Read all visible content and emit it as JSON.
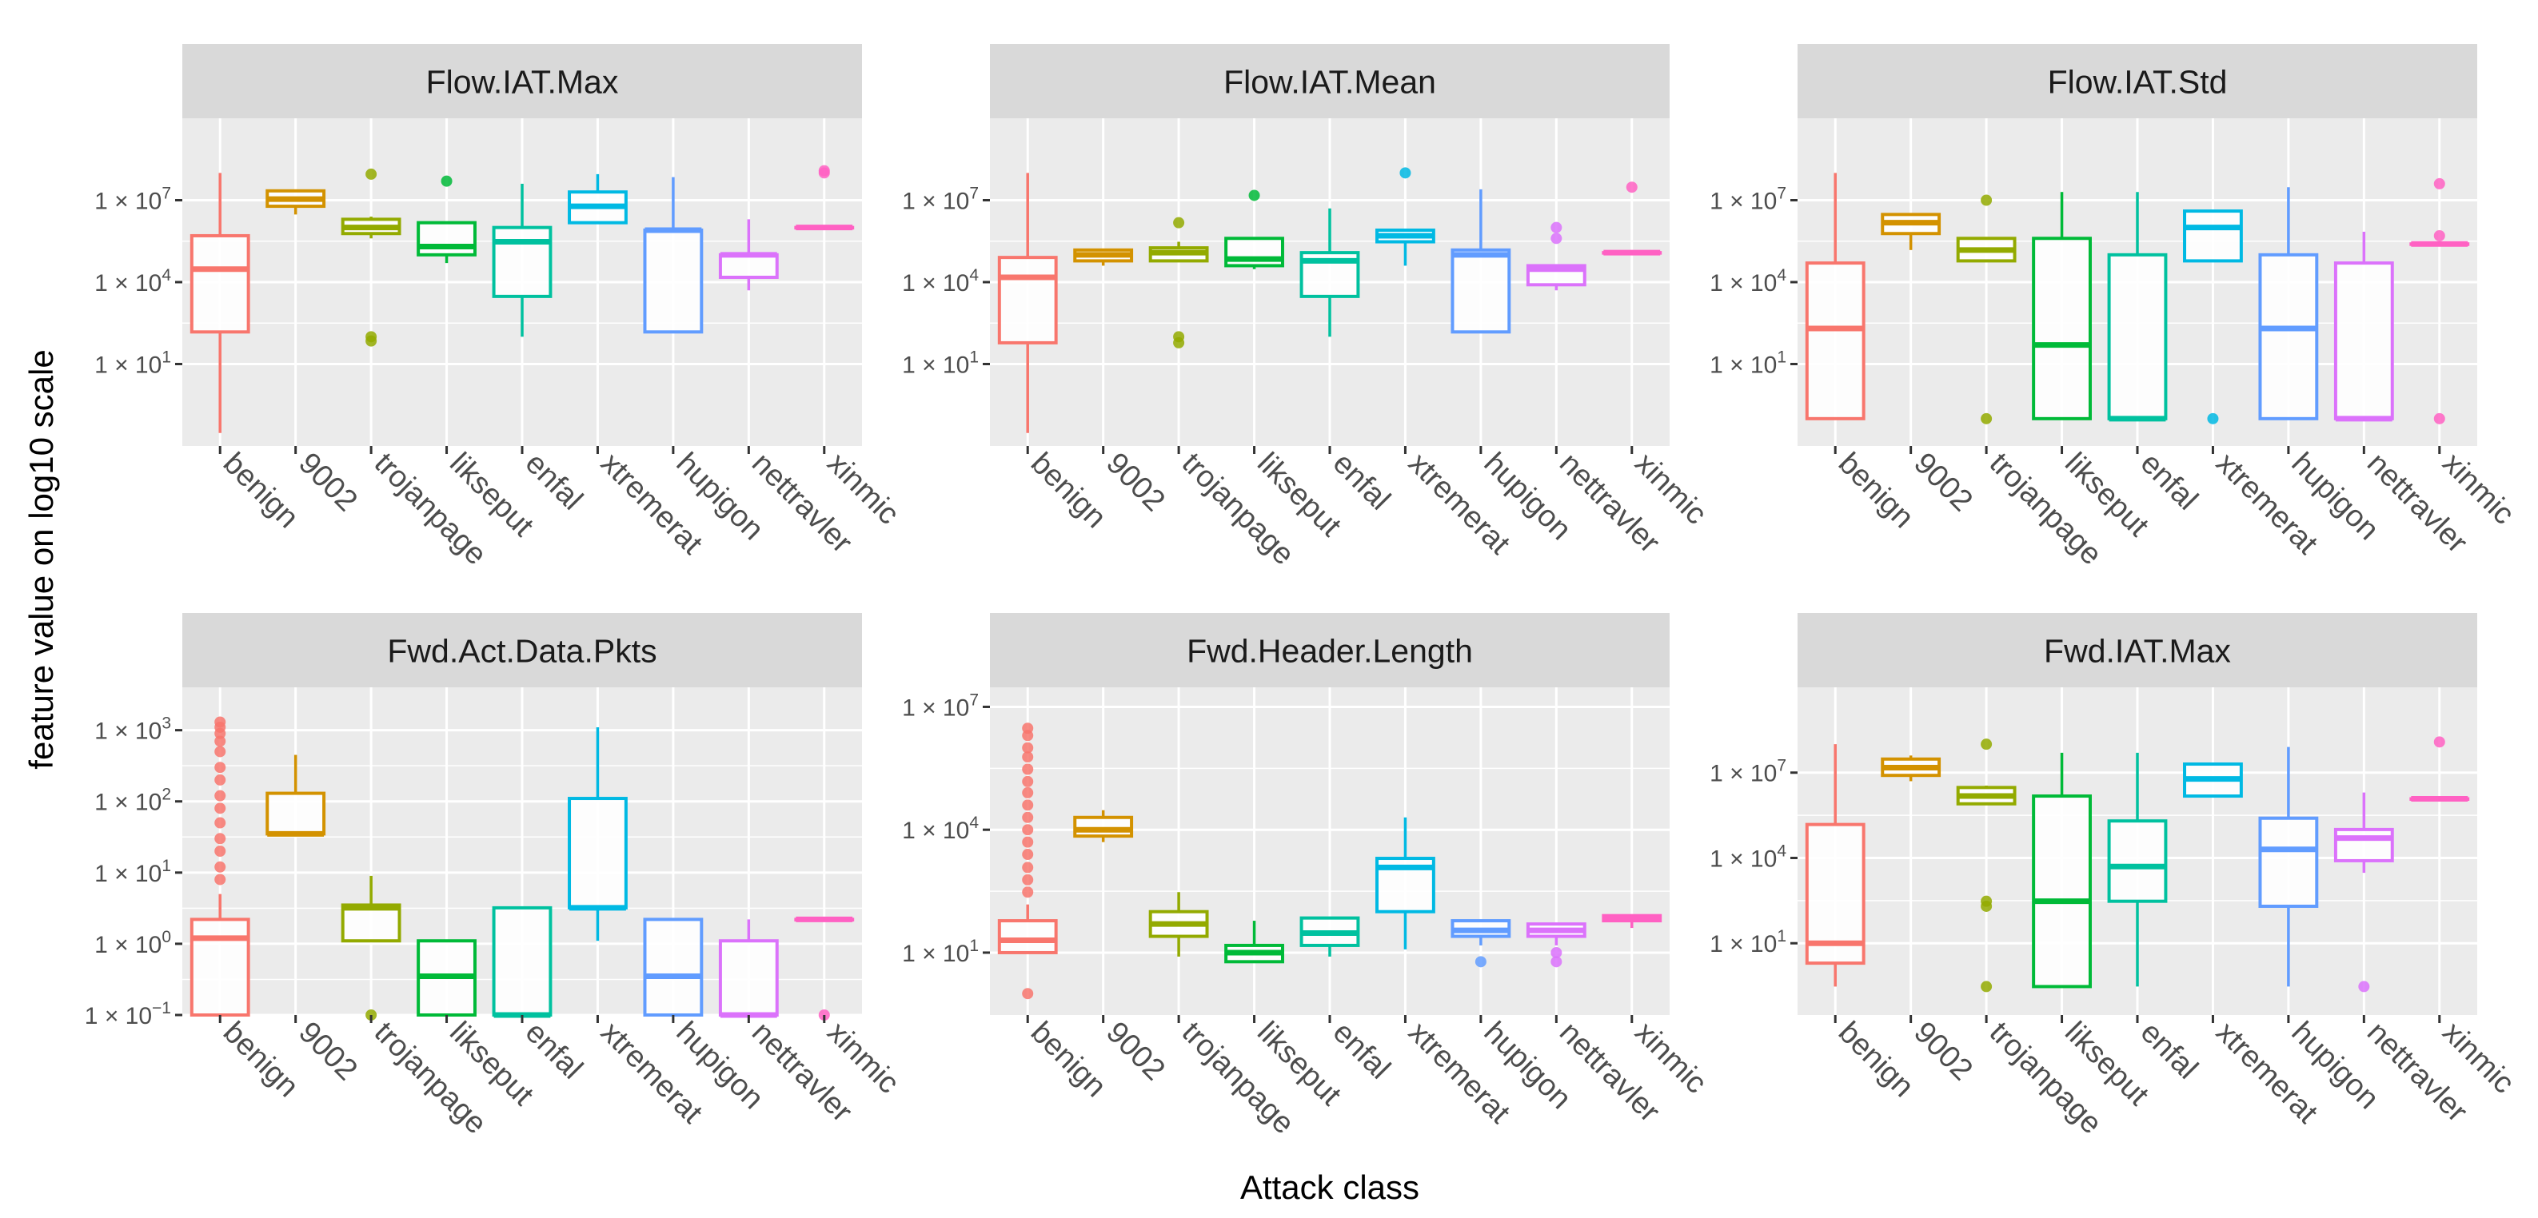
{
  "figure": {
    "xlabel": "Attack class",
    "ylabel": "feature value on log10 scale"
  },
  "chart_data": [
    {
      "type": "boxplot",
      "title": "Flow.IAT.Max",
      "yscale": "log10",
      "ylim": [
        0.01,
        10000000000
      ],
      "y_ticks": [
        {
          "value": 10,
          "label": "1 × 10",
          "exp": "1"
        },
        {
          "value": 10000,
          "label": "1 × 10",
          "exp": "4"
        },
        {
          "value": 10000000,
          "label": "1 × 10",
          "exp": "7"
        }
      ],
      "categories": [
        "benign",
        "9002",
        "trojanpage",
        "likseput",
        "enfal",
        "xtremerat",
        "hupigon",
        "nettravler",
        "xinmic"
      ],
      "boxes": [
        {
          "name": "benign",
          "color": "#F8766D",
          "whisker_low": 0.03,
          "q1": 150,
          "median": 30000,
          "q3": 500000,
          "whisker_high": 100000000,
          "outliers": []
        },
        {
          "name": "9002",
          "color": "#D39200",
          "whisker_low": 3000000,
          "q1": 6000000,
          "median": 11000000,
          "q3": 22000000,
          "whisker_high": 22000000,
          "outliers": []
        },
        {
          "name": "trojanpage",
          "color": "#93AA00",
          "whisker_low": 400000,
          "q1": 600000,
          "median": 1000000,
          "q3": 2000000,
          "whisker_high": 2500000,
          "outliers": [
            90000000,
            70,
            100
          ]
        },
        {
          "name": "likseput",
          "color": "#00BA38",
          "whisker_low": 50000,
          "q1": 100000,
          "median": 200000,
          "q3": 1500000,
          "whisker_high": 1500000,
          "outliers": [
            50000000
          ]
        },
        {
          "name": "enfal",
          "color": "#00C19F",
          "whisker_low": 100,
          "q1": 3000,
          "median": 300000,
          "q3": 1000000,
          "whisker_high": 40000000,
          "outliers": []
        },
        {
          "name": "xtremerat",
          "color": "#00B9E3",
          "whisker_low": 1500000,
          "q1": 1500000,
          "median": 6000000,
          "q3": 20000000,
          "whisker_high": 90000000,
          "outliers": []
        },
        {
          "name": "hupigon",
          "color": "#619CFF",
          "whisker_low": 150,
          "q1": 150,
          "median": 800000,
          "q3": 800000,
          "whisker_high": 70000000,
          "outliers": []
        },
        {
          "name": "nettravler",
          "color": "#DB72FB",
          "whisker_low": 5000,
          "q1": 15000,
          "median": 100000,
          "q3": 100000,
          "whisker_high": 2000000,
          "outliers": []
        },
        {
          "name": "xinmic",
          "color": "#FF61C3",
          "whisker_low": 1000000,
          "q1": 1000000,
          "median": 1000000,
          "q3": 1000000,
          "whisker_high": 1000000,
          "outliers": [
            100000000,
            120000000
          ]
        }
      ]
    },
    {
      "type": "boxplot",
      "title": "Flow.IAT.Mean",
      "yscale": "log10",
      "ylim": [
        0.01,
        10000000000
      ],
      "y_ticks": [
        {
          "value": 10,
          "label": "1 × 10",
          "exp": "1"
        },
        {
          "value": 10000,
          "label": "1 × 10",
          "exp": "4"
        },
        {
          "value": 10000000,
          "label": "1 × 10",
          "exp": "7"
        }
      ],
      "categories": [
        "benign",
        "9002",
        "trojanpage",
        "likseput",
        "enfal",
        "xtremerat",
        "hupigon",
        "nettravler",
        "xinmic"
      ],
      "boxes": [
        {
          "name": "benign",
          "color": "#F8766D",
          "whisker_low": 0.03,
          "q1": 60,
          "median": 15000,
          "q3": 80000,
          "whisker_high": 100000000,
          "outliers": []
        },
        {
          "name": "9002",
          "color": "#D39200",
          "whisker_low": 40000,
          "q1": 60000,
          "median": 100000,
          "q3": 150000,
          "whisker_high": 150000,
          "outliers": []
        },
        {
          "name": "trojanpage",
          "color": "#93AA00",
          "whisker_low": 60000,
          "q1": 60000,
          "median": 120000,
          "q3": 180000,
          "whisker_high": 300000,
          "outliers": [
            1500000,
            60,
            100
          ]
        },
        {
          "name": "likseput",
          "color": "#00BA38",
          "whisker_low": 30000,
          "q1": 40000,
          "median": 70000,
          "q3": 400000,
          "whisker_high": 400000,
          "outliers": [
            15000000
          ]
        },
        {
          "name": "enfal",
          "color": "#00C19F",
          "whisker_low": 100,
          "q1": 3000,
          "median": 60000,
          "q3": 120000,
          "whisker_high": 5000000,
          "outliers": []
        },
        {
          "name": "xtremerat",
          "color": "#00B9E3",
          "whisker_low": 40000,
          "q1": 300000,
          "median": 500000,
          "q3": 800000,
          "whisker_high": 800000,
          "outliers": [
            100000000
          ]
        },
        {
          "name": "hupigon",
          "color": "#619CFF",
          "whisker_low": 150,
          "q1": 150,
          "median": 100000,
          "q3": 150000,
          "whisker_high": 25000000,
          "outliers": []
        },
        {
          "name": "nettravler",
          "color": "#DB72FB",
          "whisker_low": 5000,
          "q1": 8000,
          "median": 30000,
          "q3": 40000,
          "whisker_high": 40000,
          "outliers": [
            400000,
            1000000
          ]
        },
        {
          "name": "xinmic",
          "color": "#FF61C3",
          "whisker_low": 120000,
          "q1": 120000,
          "median": 120000,
          "q3": 120000,
          "whisker_high": 120000,
          "outliers": [
            30000000
          ]
        }
      ]
    },
    {
      "type": "boxplot",
      "title": "Flow.IAT.Std",
      "yscale": "log10",
      "ylim": [
        0.01,
        10000000000
      ],
      "y_ticks": [
        {
          "value": 10,
          "label": "1 × 10",
          "exp": "1"
        },
        {
          "value": 10000,
          "label": "1 × 10",
          "exp": "4"
        },
        {
          "value": 10000000,
          "label": "1 × 10",
          "exp": "7"
        }
      ],
      "categories": [
        "benign",
        "9002",
        "trojanpage",
        "likseput",
        "enfal",
        "xtremerat",
        "hupigon",
        "nettravler",
        "xinmic"
      ],
      "boxes": [
        {
          "name": "benign",
          "color": "#F8766D",
          "whisker_low": 0.1,
          "q1": 0.1,
          "median": 200,
          "q3": 50000,
          "whisker_high": 100000000,
          "outliers": []
        },
        {
          "name": "9002",
          "color": "#D39200",
          "whisker_low": 150000,
          "q1": 600000,
          "median": 1500000,
          "q3": 3000000,
          "whisker_high": 3000000,
          "outliers": []
        },
        {
          "name": "trojanpage",
          "color": "#93AA00",
          "whisker_low": 60000,
          "q1": 60000,
          "median": 150000,
          "q3": 400000,
          "whisker_high": 400000,
          "outliers": [
            10000000,
            0.1
          ]
        },
        {
          "name": "likseput",
          "color": "#00BA38",
          "whisker_low": 0.1,
          "q1": 0.1,
          "median": 50,
          "q3": 400000,
          "whisker_high": 20000000,
          "outliers": []
        },
        {
          "name": "enfal",
          "color": "#00C19F",
          "whisker_low": 0.1,
          "q1": 0.1,
          "median": 0.1,
          "q3": 100000,
          "whisker_high": 20000000,
          "outliers": []
        },
        {
          "name": "xtremerat",
          "color": "#00B9E3",
          "whisker_low": 60000,
          "q1": 60000,
          "median": 1000000,
          "q3": 4000000,
          "whisker_high": 4000000,
          "outliers": [
            0.1
          ]
        },
        {
          "name": "hupigon",
          "color": "#619CFF",
          "whisker_low": 0.1,
          "q1": 0.1,
          "median": 200,
          "q3": 100000,
          "whisker_high": 30000000,
          "outliers": []
        },
        {
          "name": "nettravler",
          "color": "#DB72FB",
          "whisker_low": 0.1,
          "q1": 0.1,
          "median": 0.1,
          "q3": 50000,
          "whisker_high": 700000,
          "outliers": []
        },
        {
          "name": "xinmic",
          "color": "#FF61C3",
          "whisker_low": 250000,
          "q1": 250000,
          "median": 250000,
          "q3": 250000,
          "whisker_high": 250000,
          "outliers": [
            40000000,
            500000,
            0.1
          ]
        }
      ]
    },
    {
      "type": "boxplot",
      "title": "Fwd.Act.Data.Pkts",
      "yscale": "log10",
      "ylim": [
        0.1,
        4000
      ],
      "y_ticks": [
        {
          "value": 0.1,
          "label": "1 × 10",
          "exp": "−1"
        },
        {
          "value": 1,
          "label": "1 × 10",
          "exp": "0"
        },
        {
          "value": 10,
          "label": "1 × 10",
          "exp": "1"
        },
        {
          "value": 100,
          "label": "1 × 10",
          "exp": "2"
        },
        {
          "value": 1000,
          "label": "1 × 10",
          "exp": "3"
        }
      ],
      "categories": [
        "benign",
        "9002",
        "trojanpage",
        "likseput",
        "enfal",
        "xtremerat",
        "hupigon",
        "nettravler",
        "xinmic"
      ],
      "boxes": [
        {
          "name": "benign",
          "color": "#F8766D",
          "whisker_low": 0.1,
          "q1": 0.1,
          "median": 1.2,
          "q3": 2.2,
          "whisker_high": 5,
          "outliers": [
            1300,
            1100,
            900,
            700,
            500,
            300,
            200,
            120,
            80,
            50,
            30,
            20,
            12,
            8
          ]
        },
        {
          "name": "9002",
          "color": "#D39200",
          "whisker_low": 35,
          "q1": 35,
          "median": 35,
          "q3": 130,
          "whisker_high": 450,
          "outliers": []
        },
        {
          "name": "trojanpage",
          "color": "#93AA00",
          "whisker_low": 1.1,
          "q1": 1.1,
          "median": 3.2,
          "q3": 3.5,
          "whisker_high": 9,
          "outliers": [
            0.1
          ]
        },
        {
          "name": "likseput",
          "color": "#00BA38",
          "whisker_low": 0.1,
          "q1": 0.1,
          "median": 0.35,
          "q3": 1.1,
          "whisker_high": 1.1,
          "outliers": []
        },
        {
          "name": "enfal",
          "color": "#00C19F",
          "whisker_low": 0.1,
          "q1": 0.1,
          "median": 0.1,
          "q3": 3.2,
          "whisker_high": 3.2,
          "outliers": []
        },
        {
          "name": "xtremerat",
          "color": "#00B9E3",
          "whisker_low": 1.1,
          "q1": 3.2,
          "median": 3.2,
          "q3": 110,
          "whisker_high": 1100,
          "outliers": []
        },
        {
          "name": "hupigon",
          "color": "#619CFF",
          "whisker_low": 0.1,
          "q1": 0.1,
          "median": 0.35,
          "q3": 2.2,
          "whisker_high": 2.2,
          "outliers": []
        },
        {
          "name": "nettravler",
          "color": "#DB72FB",
          "whisker_low": 0.1,
          "q1": 0.1,
          "median": 0.1,
          "q3": 1.1,
          "whisker_high": 2.2,
          "outliers": []
        },
        {
          "name": "xinmic",
          "color": "#FF61C3",
          "whisker_low": 2.2,
          "q1": 2.2,
          "median": 2.2,
          "q3": 2.2,
          "whisker_high": 2.2,
          "outliers": [
            0.1
          ]
        }
      ]
    },
    {
      "type": "boxplot",
      "title": "Fwd.Header.Length",
      "yscale": "log10",
      "ylim": [
        0.3,
        30000000
      ],
      "y_ticks": [
        {
          "value": 10,
          "label": "1 × 10",
          "exp": "1"
        },
        {
          "value": 10000,
          "label": "1 × 10",
          "exp": "4"
        },
        {
          "value": 10000000,
          "label": "1 × 10",
          "exp": "7"
        }
      ],
      "categories": [
        "benign",
        "9002",
        "trojanpage",
        "likseput",
        "enfal",
        "xtremerat",
        "hupigon",
        "nettravler",
        "xinmic"
      ],
      "boxes": [
        {
          "name": "benign",
          "color": "#F8766D",
          "whisker_low": 10,
          "q1": 10,
          "median": 20,
          "q3": 60,
          "whisker_high": 150,
          "outliers": [
            3000000,
            2000000,
            1000000,
            600000,
            300000,
            150000,
            80000,
            40000,
            20000,
            10000,
            5000,
            2500,
            1200,
            600,
            300,
            1
          ]
        },
        {
          "name": "9002",
          "color": "#D39200",
          "whisker_low": 5000,
          "q1": 7000,
          "median": 10000,
          "q3": 20000,
          "whisker_high": 30000,
          "outliers": []
        },
        {
          "name": "trojanpage",
          "color": "#93AA00",
          "whisker_low": 8,
          "q1": 25,
          "median": 50,
          "q3": 100,
          "whisker_high": 300,
          "outliers": []
        },
        {
          "name": "likseput",
          "color": "#00BA38",
          "whisker_low": 6,
          "q1": 6,
          "median": 10,
          "q3": 15,
          "whisker_high": 60,
          "outliers": []
        },
        {
          "name": "enfal",
          "color": "#00C19F",
          "whisker_low": 8,
          "q1": 15,
          "median": 30,
          "q3": 70,
          "whisker_high": 70,
          "outliers": []
        },
        {
          "name": "xtremerat",
          "color": "#00B9E3",
          "whisker_low": 12,
          "q1": 100,
          "median": 1200,
          "q3": 2000,
          "whisker_high": 20000,
          "outliers": []
        },
        {
          "name": "hupigon",
          "color": "#619CFF",
          "whisker_low": 15,
          "q1": 25,
          "median": 35,
          "q3": 60,
          "whisker_high": 60,
          "outliers": [
            6
          ]
        },
        {
          "name": "nettravler",
          "color": "#DB72FB",
          "whisker_low": 15,
          "q1": 25,
          "median": 35,
          "q3": 50,
          "whisker_high": 50,
          "outliers": [
            6,
            10
          ]
        },
        {
          "name": "xinmic",
          "color": "#FF61C3",
          "whisker_low": 40,
          "q1": 60,
          "median": 70,
          "q3": 80,
          "whisker_high": 80,
          "outliers": []
        }
      ]
    },
    {
      "type": "boxplot",
      "title": "Fwd.IAT.Max",
      "yscale": "log10",
      "ylim": [
        0.03,
        10000000000
      ],
      "y_ticks": [
        {
          "value": 10,
          "label": "1 × 10",
          "exp": "1"
        },
        {
          "value": 10000,
          "label": "1 × 10",
          "exp": "4"
        },
        {
          "value": 10000000,
          "label": "1 × 10",
          "exp": "7"
        }
      ],
      "categories": [
        "benign",
        "9002",
        "trojanpage",
        "likseput",
        "enfal",
        "xtremerat",
        "hupigon",
        "nettravler",
        "xinmic"
      ],
      "boxes": [
        {
          "name": "benign",
          "color": "#F8766D",
          "whisker_low": 0.3,
          "q1": 2,
          "median": 10,
          "q3": 150000,
          "whisker_high": 100000000,
          "outliers": []
        },
        {
          "name": "9002",
          "color": "#D39200",
          "whisker_low": 5000000,
          "q1": 8000000,
          "median": 15000000,
          "q3": 30000000,
          "whisker_high": 40000000,
          "outliers": []
        },
        {
          "name": "trojanpage",
          "color": "#93AA00",
          "whisker_low": 800000,
          "q1": 800000,
          "median": 1500000,
          "q3": 3000000,
          "whisker_high": 3500000,
          "outliers": [
            100000000,
            300,
            200,
            0.3
          ]
        },
        {
          "name": "likseput",
          "color": "#00BA38",
          "whisker_low": 0.3,
          "q1": 0.3,
          "median": 300,
          "q3": 1500000,
          "whisker_high": 50000000,
          "outliers": []
        },
        {
          "name": "enfal",
          "color": "#00C19F",
          "whisker_low": 0.3,
          "q1": 300,
          "median": 5000,
          "q3": 200000,
          "whisker_high": 50000000,
          "outliers": []
        },
        {
          "name": "xtremerat",
          "color": "#00B9E3",
          "whisker_low": 1500000,
          "q1": 1500000,
          "median": 6000000,
          "q3": 20000000,
          "whisker_high": 20000000,
          "outliers": []
        },
        {
          "name": "hupigon",
          "color": "#619CFF",
          "whisker_low": 0.3,
          "q1": 200,
          "median": 20000,
          "q3": 250000,
          "whisker_high": 80000000,
          "outliers": []
        },
        {
          "name": "nettravler",
          "color": "#DB72FB",
          "whisker_low": 3000,
          "q1": 8000,
          "median": 50000,
          "q3": 100000,
          "whisker_high": 2000000,
          "outliers": [
            0.3
          ]
        },
        {
          "name": "xinmic",
          "color": "#FF61C3",
          "whisker_low": 1200000,
          "q1": 1200000,
          "median": 1200000,
          "q3": 1200000,
          "whisker_high": 1200000,
          "outliers": [
            120000000
          ]
        }
      ]
    }
  ]
}
